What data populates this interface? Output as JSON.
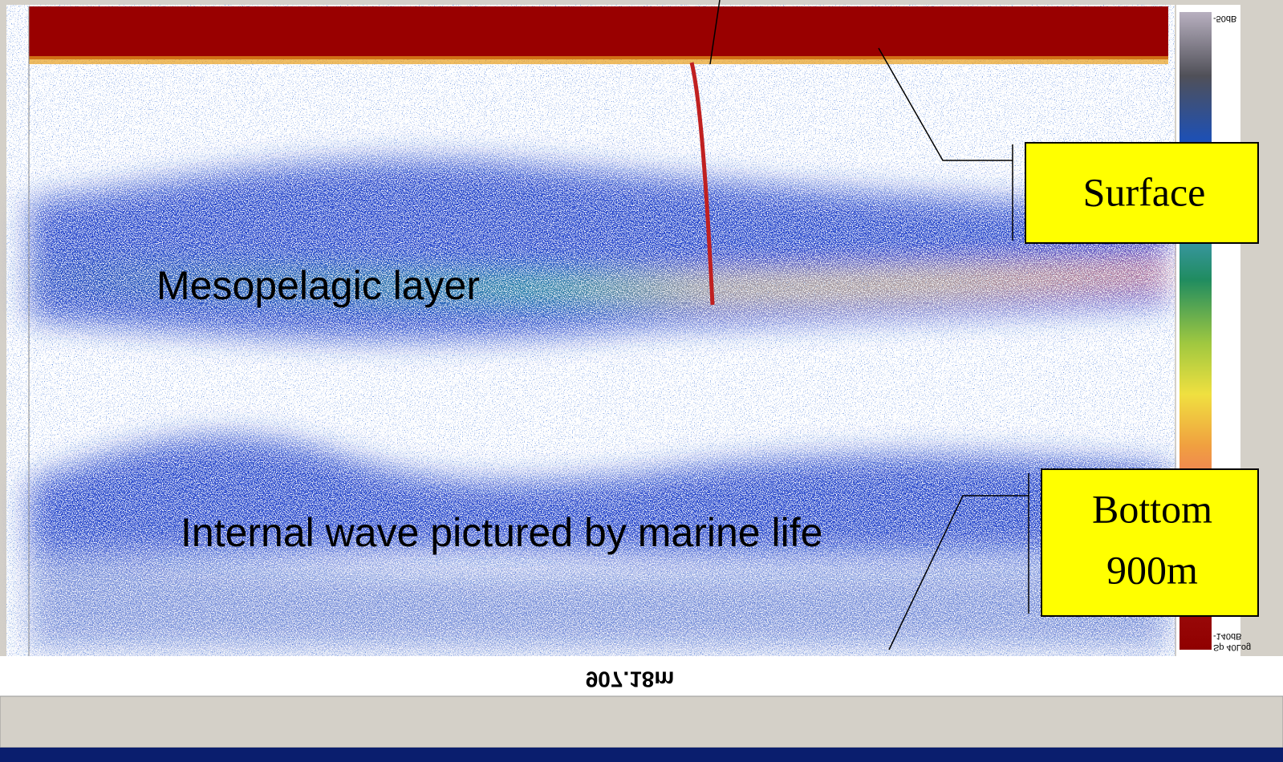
{
  "echogram": {
    "range_label": "907.18m",
    "color_scale": {
      "top": "-50dB",
      "bottom": "-140dB",
      "unit": "Sp 40Log"
    }
  },
  "annotations": {
    "surface": "Surface",
    "bottom": "Bottom",
    "bottom_depth": "900m",
    "layer": "Mesopelagic layer",
    "wave": "Internal wave pictured by marine life"
  }
}
